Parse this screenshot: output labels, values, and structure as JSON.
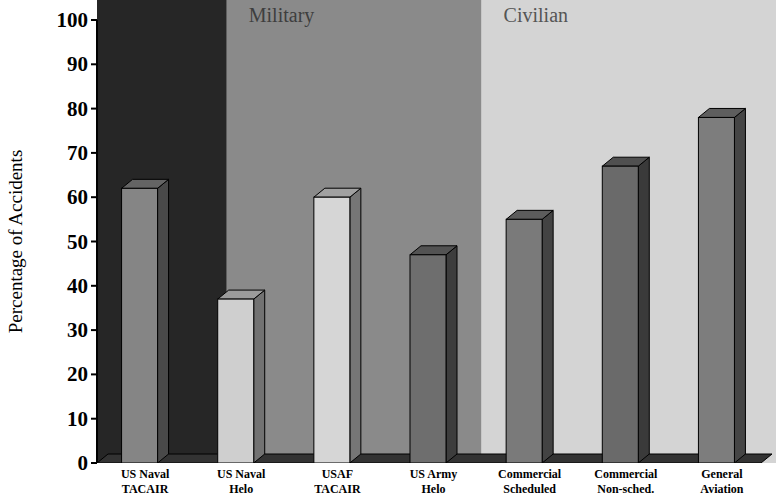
{
  "chart_data": {
    "type": "bar",
    "y_label": "Percentage of Accidents",
    "annotations": [
      "Military",
      "Civilian"
    ],
    "categories": [
      "US Naval TACAIR",
      "US Naval Helo",
      "USAF TACAIR",
      "US Army Helo",
      "Commercial Scheduled",
      "Commercial Non-sched.",
      "General Aviation"
    ],
    "values": [
      62,
      37,
      60,
      47,
      55,
      67,
      78
    ],
    "colors": [
      "#858585",
      "#cfcfcf",
      "#d6d6d6",
      "#6e6e6e",
      "#7a7a7a",
      "#6a6a6a",
      "#7d7d7d"
    ],
    "ylim": [
      0,
      100
    ],
    "yticks": [
      0,
      10,
      20,
      30,
      40,
      50,
      60,
      70,
      80,
      90,
      100
    ],
    "grid": false
  }
}
